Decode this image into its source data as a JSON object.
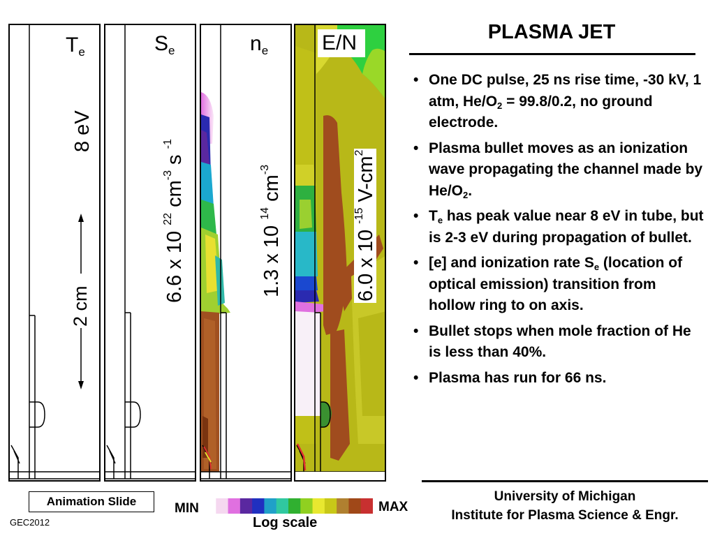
{
  "title": "PLASMA JET",
  "panels": {
    "te": {
      "label": "T",
      "label_sub": "e",
      "scale_text": "8 eV"
    },
    "se": {
      "label": "S",
      "label_sub": "e",
      "scale_base": "6.6 x 10 ",
      "scale_exp1": "22",
      "scale_mid": " cm",
      "scale_exp2": "-3",
      "scale_mid2": " s ",
      "scale_exp3": "-1"
    },
    "ne": {
      "label": "n",
      "label_sub": "e",
      "scale_base": "1.3 x 10 ",
      "scale_exp1": "14",
      "scale_mid": " cm",
      "scale_exp2": "-3"
    },
    "en": {
      "label": "E/N",
      "scale_base": "6.0 x 10 ",
      "scale_exp1": "-15",
      "scale_mid": " V-cm",
      "scale_exp2": "2"
    }
  },
  "scale_bar_label": "2 cm",
  "bullets": {
    "b1_a": "One DC pulse, 25 ns rise time, -30 kV, 1 atm, He/O",
    "b1_sub": "2",
    "b1_b": " = 99.8/0.2, no ground electrode.",
    "b2_a": "Plasma bullet moves as an ionization wave propagating the channel made by He/O",
    "b2_sub": "2",
    "b2_b": ".",
    "b3_a": "T",
    "b3_sub": "e",
    "b3_b": " has peak value near 8 eV in tube, but is 2-3 eV during propagation of bullet.",
    "b4_a": "[e] and ionization rate S",
    "b4_sub": "e",
    "b4_b": " (location of optical emission) transition from hollow ring to on axis.",
    "b5": "Bullet stops when mole fraction of He is less than 40%.",
    "b6": "Plasma has run for 66 ns."
  },
  "footer": {
    "university": "University of Michigan",
    "institute": "Institute for Plasma Science & Engr.",
    "animation": "Animation Slide",
    "gec": "GEC2012"
  },
  "colorbar": {
    "min": "MIN",
    "max": "MAX",
    "scale": "Log scale",
    "colors": [
      "#ffffff",
      "#f5d8f0",
      "#e070e0",
      "#5a28a0",
      "#2030c0",
      "#20a0c8",
      "#30c8a0",
      "#30b030",
      "#90d020",
      "#e8e830",
      "#c8c818",
      "#b08030",
      "#a04818",
      "#c83030"
    ]
  }
}
